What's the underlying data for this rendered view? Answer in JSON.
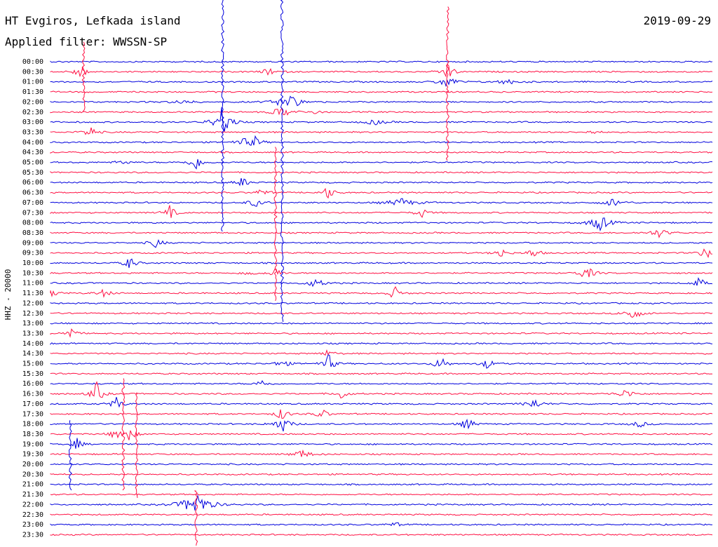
{
  "header": {
    "station": "HT Evgiros, Lefkada island",
    "date": "2019-09-29",
    "filter": "Applied filter: WWSSN-SP"
  },
  "side_label": "HHZ - 20000",
  "colors": {
    "odd": "#0000dd",
    "even": "#ff1144"
  },
  "rows": [
    "00:00",
    "00:30",
    "01:00",
    "01:30",
    "02:00",
    "02:30",
    "03:00",
    "03:30",
    "04:00",
    "04:30",
    "05:00",
    "05:30",
    "06:00",
    "06:30",
    "07:00",
    "07:30",
    "08:00",
    "08:30",
    "09:00",
    "09:30",
    "10:00",
    "10:30",
    "11:00",
    "11:30",
    "12:00",
    "12:30",
    "13:00",
    "13:30",
    "14:00",
    "14:30",
    "15:00",
    "15:30",
    "16:00",
    "16:30",
    "17:00",
    "17:30",
    "18:00",
    "18:30",
    "19:00",
    "19:30",
    "20:00",
    "20:30",
    "21:00",
    "21:30",
    "22:00",
    "22:30",
    "23:00",
    "23:30"
  ]
}
